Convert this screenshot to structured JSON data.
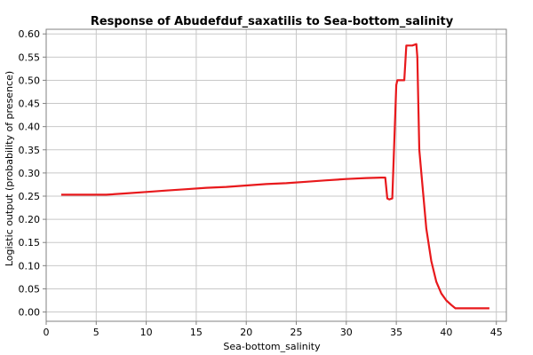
{
  "chart_data": {
    "type": "line",
    "title": "Response of Abudefduf_saxatilis to Sea-bottom_salinity",
    "xlabel": "Sea-bottom_salinity",
    "ylabel": "Logistic output (probability of presence)",
    "xlim": [
      0,
      46
    ],
    "ylim": [
      -0.02,
      0.61
    ],
    "x_ticks": [
      0,
      5,
      10,
      15,
      20,
      25,
      30,
      35,
      40,
      45
    ],
    "y_ticks": [
      0.0,
      0.05,
      0.1,
      0.15,
      0.2,
      0.25,
      0.3,
      0.35,
      0.4,
      0.45,
      0.5,
      0.55,
      0.6
    ],
    "grid": true,
    "colors": {
      "line": "#e8191c",
      "grid": "#c8c8c8",
      "axis": "#000000"
    },
    "series": [
      {
        "x": [
          1.5,
          6.0,
          8.0,
          10.0,
          12.0,
          14.0,
          16.0,
          18.0,
          20.0,
          22.0,
          24.0,
          26.0,
          28.0,
          30.0,
          32.0,
          33.5,
          33.9,
          34.1,
          34.3,
          34.6,
          34.8,
          35.0,
          35.1,
          35.2,
          35.4,
          35.8,
          36.0,
          36.2,
          36.6,
          37.0,
          37.1,
          37.3,
          37.5,
          38.0,
          38.5,
          39.0,
          39.5,
          40.0,
          40.5,
          40.9,
          41.2,
          44.3
        ],
        "y": [
          0.253,
          0.253,
          0.256,
          0.259,
          0.262,
          0.265,
          0.268,
          0.27,
          0.273,
          0.276,
          0.278,
          0.281,
          0.284,
          0.287,
          0.289,
          0.29,
          0.29,
          0.245,
          0.243,
          0.245,
          0.37,
          0.49,
          0.5,
          0.5,
          0.5,
          0.5,
          0.575,
          0.575,
          0.575,
          0.578,
          0.55,
          0.35,
          0.3,
          0.18,
          0.11,
          0.065,
          0.04,
          0.025,
          0.015,
          0.008,
          0.008,
          0.008
        ]
      }
    ]
  }
}
